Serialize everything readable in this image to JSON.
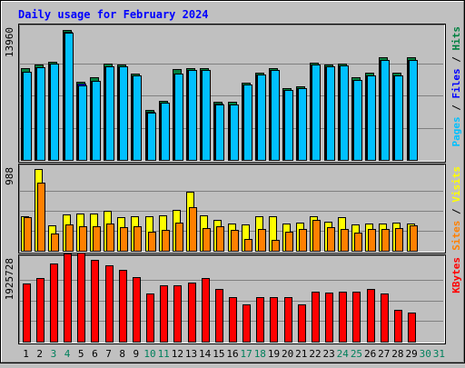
{
  "chart_data": [
    {
      "type": "bar",
      "title": "Daily usage for February 2024",
      "categories": [
        "1",
        "2",
        "3",
        "4",
        "5",
        "6",
        "7",
        "8",
        "9",
        "10",
        "11",
        "12",
        "13",
        "14",
        "15",
        "16",
        "17",
        "18",
        "19",
        "20",
        "21",
        "22",
        "23",
        "24",
        "25",
        "26",
        "27",
        "28",
        "29",
        "30",
        "31"
      ],
      "weekend_days": [
        "3",
        "4",
        "10",
        "11",
        "17",
        "18",
        "24",
        "25",
        "30",
        "31"
      ],
      "ytick": 13960,
      "ylim": [
        0,
        14650
      ],
      "ylabel": [
        "Pages",
        "Files",
        "Hits"
      ],
      "ylabel_separator": " / ",
      "series": [
        {
          "name": "Hits",
          "color": "#008040",
          "values": [
            10000,
            10400,
            10700,
            14200,
            8500,
            9000,
            10500,
            10400,
            9400,
            5400,
            6400,
            9900,
            10000,
            10000,
            6300,
            6300,
            8400,
            9500,
            10000,
            7800,
            8000,
            10600,
            10400,
            10500,
            9000,
            9500,
            11200,
            9500,
            11200,
            0,
            0
          ]
        },
        {
          "name": "Files",
          "color": "#0000ff",
          "values": [
            9600,
            10100,
            10500,
            14000,
            8300,
            8600,
            10200,
            10200,
            9200,
            5200,
            6200,
            9400,
            9800,
            9800,
            6100,
            6000,
            8200,
            9300,
            9800,
            7600,
            7800,
            10400,
            10200,
            10300,
            8700,
            9200,
            10900,
            9200,
            10900,
            0,
            0
          ]
        },
        {
          "name": "Pages",
          "color": "#00c0ff",
          "values": [
            9600,
            10100,
            10500,
            13900,
            8100,
            8600,
            10200,
            10200,
            9200,
            5100,
            6200,
            9400,
            9800,
            9800,
            6000,
            6000,
            8200,
            9300,
            9800,
            7600,
            7800,
            10400,
            10200,
            10300,
            8700,
            9200,
            10900,
            9200,
            10900,
            0,
            0
          ]
        }
      ]
    },
    {
      "type": "bar",
      "categories": [
        "1",
        "2",
        "3",
        "4",
        "5",
        "6",
        "7",
        "8",
        "9",
        "10",
        "11",
        "12",
        "13",
        "14",
        "15",
        "16",
        "17",
        "18",
        "19",
        "20",
        "21",
        "22",
        "23",
        "24",
        "25",
        "26",
        "27",
        "28",
        "29",
        "30",
        "31"
      ],
      "ytick": 988,
      "ylim": [
        0,
        1050
      ],
      "ylabel": [
        "Sites",
        "Visits"
      ],
      "ylabel_separator": " / ",
      "series": [
        {
          "name": "Visits",
          "color": "#ffff00",
          "values": [
            420,
            1000,
            310,
            450,
            460,
            460,
            490,
            410,
            420,
            420,
            440,
            500,
            730,
            440,
            380,
            330,
            320,
            420,
            420,
            330,
            350,
            420,
            360,
            410,
            320,
            330,
            340,
            350,
            330,
            0,
            0
          ]
        },
        {
          "name": "Sites",
          "color": "#ff8000",
          "values": [
            410,
            840,
            210,
            320,
            300,
            300,
            340,
            290,
            300,
            240,
            260,
            350,
            540,
            280,
            300,
            260,
            140,
            270,
            130,
            240,
            270,
            380,
            290,
            270,
            220,
            270,
            270,
            280,
            310,
            0,
            0
          ]
        }
      ]
    },
    {
      "type": "bar",
      "categories": [
        "1",
        "2",
        "3",
        "4",
        "5",
        "6",
        "7",
        "8",
        "9",
        "10",
        "11",
        "12",
        "13",
        "14",
        "15",
        "16",
        "17",
        "18",
        "19",
        "20",
        "21",
        "22",
        "23",
        "24",
        "25",
        "26",
        "27",
        "28",
        "29",
        "30",
        "31"
      ],
      "ytick": 1925728,
      "ylim": [
        0,
        2000000
      ],
      "ylabel": [
        "KBytes"
      ],
      "ylabel_separator": "",
      "series": [
        {
          "name": "KBytes",
          "color": "#ff0000",
          "values": [
            1370000,
            1500000,
            1830000,
            2070000,
            2080000,
            1910000,
            1780000,
            1680000,
            1520000,
            1130000,
            1310000,
            1320000,
            1380000,
            1500000,
            1240000,
            1040000,
            880000,
            1040000,
            1040000,
            1040000,
            870000,
            1160000,
            1140000,
            1180000,
            1180000,
            1230000,
            1130000,
            750000,
            690000,
            0,
            0
          ]
        }
      ]
    }
  ],
  "colors": {
    "background": "#c0c0c0",
    "panel": "#c0c0c0",
    "grid": "#808080",
    "title": "#0000ff",
    "weekday_label": "#000000",
    "weekend_label": "#00805c"
  }
}
